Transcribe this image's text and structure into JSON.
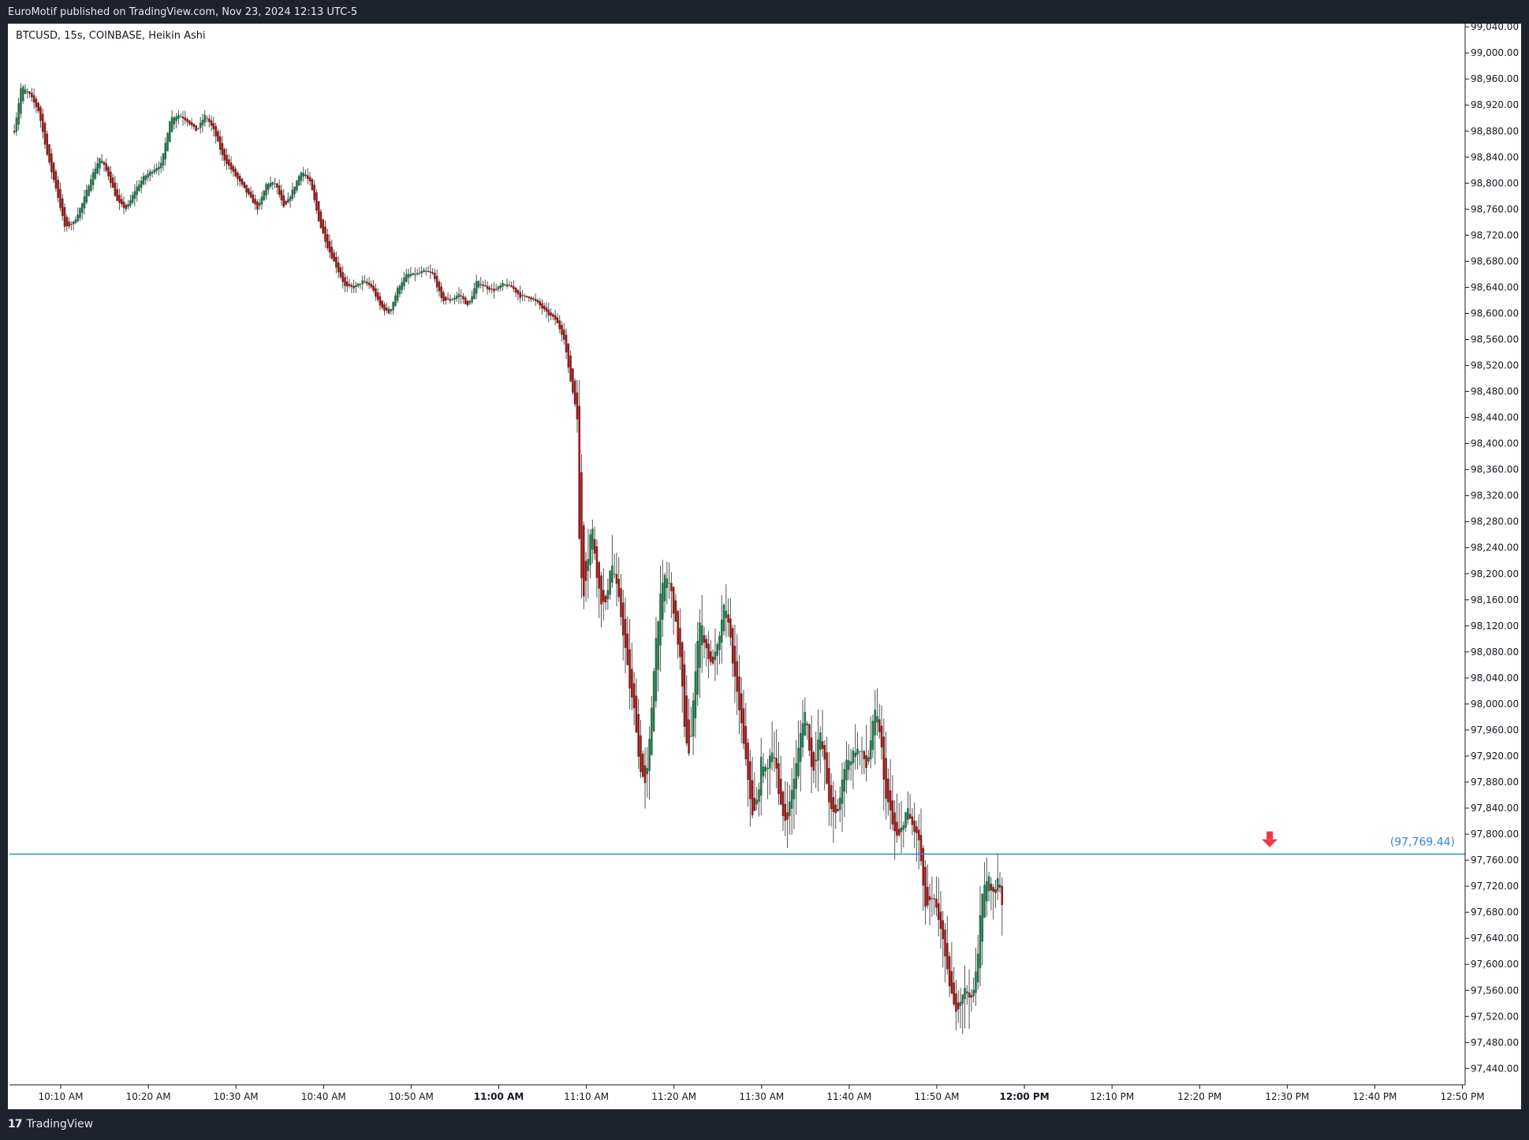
{
  "header": {
    "published": "EuroMotif published on TradingView.com, Nov 23, 2024 12:13 UTC-5"
  },
  "chart_info": {
    "symbol_line": "BTCUSD, 15s, COINBASE, Heikin Ashi"
  },
  "footer": {
    "brand": "TradingView"
  },
  "colors": {
    "bull": "#26734d",
    "bear": "#8c1f1f",
    "wick": "#555555",
    "level_line": "#2e86de",
    "arrow": "#f23645"
  },
  "chart_data": {
    "type": "candlestick",
    "title": "BTCUSD, 15s, COINBASE, Heikin Ashi",
    "y_ticks": [
      "99,040.00",
      "99,000.00",
      "98,960.00",
      "98,920.00",
      "98,880.00",
      "98,840.00",
      "98,800.00",
      "98,760.00",
      "98,720.00",
      "98,680.00",
      "98,640.00",
      "98,600.00",
      "98,560.00",
      "98,520.00",
      "98,480.00",
      "98,440.00",
      "98,400.00",
      "98,360.00",
      "98,320.00",
      "98,280.00",
      "98,240.00",
      "98,200.00",
      "98,160.00",
      "98,120.00",
      "98,080.00",
      "98,040.00",
      "98,000.00",
      "97,960.00",
      "97,920.00",
      "97,880.00",
      "97,840.00",
      "97,800.00",
      "97,760.00",
      "97,720.00",
      "97,680.00",
      "97,640.00",
      "97,600.00",
      "97,560.00",
      "97,520.00",
      "97,480.00",
      "97,440.00"
    ],
    "y_tick_values": [
      99040,
      99000,
      98960,
      98920,
      98880,
      98840,
      98800,
      98760,
      98720,
      98680,
      98640,
      98600,
      98560,
      98520,
      98480,
      98440,
      98400,
      98360,
      98320,
      98280,
      98240,
      98200,
      98160,
      98120,
      98080,
      98040,
      98000,
      97960,
      97920,
      97880,
      97840,
      97800,
      97760,
      97720,
      97680,
      97640,
      97600,
      97560,
      97520,
      97480,
      97440
    ],
    "ylim": [
      97415,
      99045
    ],
    "x_ticks": [
      {
        "label": "10:10 AM",
        "minutes": 610,
        "bold": false
      },
      {
        "label": "10:20 AM",
        "minutes": 620,
        "bold": false
      },
      {
        "label": "10:30 AM",
        "minutes": 630,
        "bold": false
      },
      {
        "label": "10:40 AM",
        "minutes": 640,
        "bold": false
      },
      {
        "label": "10:50 AM",
        "minutes": 650,
        "bold": false
      },
      {
        "label": "11:00 AM",
        "minutes": 660,
        "bold": true
      },
      {
        "label": "11:10 AM",
        "minutes": 670,
        "bold": false
      },
      {
        "label": "11:20 AM",
        "minutes": 680,
        "bold": false
      },
      {
        "label": "11:30 AM",
        "minutes": 690,
        "bold": false
      },
      {
        "label": "11:40 AM",
        "minutes": 700,
        "bold": false
      },
      {
        "label": "11:50 AM",
        "minutes": 710,
        "bold": false
      },
      {
        "label": "12:00 PM",
        "minutes": 720,
        "bold": true
      },
      {
        "label": "12:10 PM",
        "minutes": 730,
        "bold": false
      },
      {
        "label": "12:20 PM",
        "minutes": 740,
        "bold": false
      },
      {
        "label": "12:30 PM",
        "minutes": 750,
        "bold": false
      },
      {
        "label": "12:40 PM",
        "minutes": 760,
        "bold": false
      },
      {
        "label": "12:50 PM",
        "minutes": 770,
        "bold": false
      }
    ],
    "price_path": [
      [
        604.7,
        98880
      ],
      [
        605.5,
        98950
      ],
      [
        606.5,
        98935
      ],
      [
        607.5,
        98910
      ],
      [
        608.5,
        98840
      ],
      [
        609.5,
        98790
      ],
      [
        610.5,
        98730
      ],
      [
        611.5,
        98740
      ],
      [
        612.5,
        98770
      ],
      [
        613.5,
        98810
      ],
      [
        614.5,
        98840
      ],
      [
        615.5,
        98810
      ],
      [
        616.5,
        98770
      ],
      [
        617.5,
        98760
      ],
      [
        618.5,
        98790
      ],
      [
        619.5,
        98810
      ],
      [
        620.5,
        98820
      ],
      [
        621.5,
        98830
      ],
      [
        622.5,
        98900
      ],
      [
        623.5,
        98905
      ],
      [
        624.5,
        98895
      ],
      [
        625.5,
        98880
      ],
      [
        626.5,
        98905
      ],
      [
        627.5,
        98880
      ],
      [
        628.5,
        98840
      ],
      [
        629.5,
        98820
      ],
      [
        630.5,
        98800
      ],
      [
        631.5,
        98780
      ],
      [
        632.5,
        98760
      ],
      [
        633.5,
        98800
      ],
      [
        634.5,
        98800
      ],
      [
        635.5,
        98760
      ],
      [
        636.5,
        98790
      ],
      [
        637.5,
        98820
      ],
      [
        638.5,
        98800
      ],
      [
        639.5,
        98740
      ],
      [
        640.5,
        98700
      ],
      [
        641.5,
        98670
      ],
      [
        642.5,
        98640
      ],
      [
        643.5,
        98640
      ],
      [
        644.5,
        98650
      ],
      [
        645.5,
        98640
      ],
      [
        646.5,
        98610
      ],
      [
        647.5,
        98600
      ],
      [
        648.5,
        98640
      ],
      [
        649.5,
        98660
      ],
      [
        650.5,
        98660
      ],
      [
        651.5,
        98665
      ],
      [
        652.5,
        98660
      ],
      [
        653.5,
        98620
      ],
      [
        654.5,
        98620
      ],
      [
        655.5,
        98630
      ],
      [
        656.5,
        98610
      ],
      [
        657.5,
        98650
      ],
      [
        658.5,
        98640
      ],
      [
        659.5,
        98635
      ],
      [
        660.5,
        98645
      ],
      [
        661.5,
        98640
      ],
      [
        662.5,
        98625
      ],
      [
        663.5,
        98625
      ],
      [
        664.5,
        98615
      ],
      [
        665.5,
        98600
      ],
      [
        666.5,
        98590
      ],
      [
        667.5,
        98560
      ],
      [
        668.0,
        98510
      ],
      [
        669.0,
        98440
      ],
      [
        669.2,
        98250
      ],
      [
        669.6,
        98160
      ],
      [
        670.0,
        98200
      ],
      [
        670.6,
        98280
      ],
      [
        671.2,
        98200
      ],
      [
        671.6,
        98160
      ],
      [
        672.2,
        98150
      ],
      [
        672.8,
        98220
      ],
      [
        673.2,
        98200
      ],
      [
        673.8,
        98150
      ],
      [
        674.4,
        98090
      ],
      [
        675.0,
        98020
      ],
      [
        675.6,
        97980
      ],
      [
        676.0,
        97910
      ],
      [
        676.8,
        97870
      ],
      [
        677.3,
        97960
      ],
      [
        677.8,
        98080
      ],
      [
        678.4,
        98160
      ],
      [
        679.0,
        98200
      ],
      [
        679.6,
        98180
      ],
      [
        680.2,
        98120
      ],
      [
        680.8,
        98060
      ],
      [
        681.2,
        97960
      ],
      [
        681.8,
        97920
      ],
      [
        682.2,
        98000
      ],
      [
        682.6,
        98090
      ],
      [
        683.0,
        98130
      ],
      [
        683.6,
        98090
      ],
      [
        684.2,
        98060
      ],
      [
        684.6,
        98070
      ],
      [
        685.2,
        98100
      ],
      [
        685.6,
        98150
      ],
      [
        686.2,
        98130
      ],
      [
        686.6,
        98080
      ],
      [
        687.0,
        98030
      ],
      [
        687.6,
        97980
      ],
      [
        688.0,
        97930
      ],
      [
        688.6,
        97870
      ],
      [
        689.0,
        97820
      ],
      [
        689.6,
        97860
      ],
      [
        690.0,
        97920
      ],
      [
        690.6,
        97890
      ],
      [
        691.0,
        97930
      ],
      [
        691.6,
        97920
      ],
      [
        692.0,
        97850
      ],
      [
        692.6,
        97820
      ],
      [
        693.0,
        97830
      ],
      [
        693.6,
        97880
      ],
      [
        694.0,
        97910
      ],
      [
        694.6,
        97970
      ],
      [
        695.0,
        97990
      ],
      [
        695.4,
        97940
      ],
      [
        695.8,
        97890
      ],
      [
        696.2,
        97920
      ],
      [
        696.6,
        97960
      ],
      [
        697.2,
        97910
      ],
      [
        697.6,
        97860
      ],
      [
        698.0,
        97830
      ],
      [
        698.6,
        97830
      ],
      [
        699.0,
        97860
      ],
      [
        699.6,
        97920
      ],
      [
        700.0,
        97910
      ],
      [
        700.6,
        97930
      ],
      [
        701.0,
        97930
      ],
      [
        701.6,
        97920
      ],
      [
        702.0,
        97900
      ],
      [
        702.6,
        97960
      ],
      [
        703.0,
        97990
      ],
      [
        703.6,
        97950
      ],
      [
        704.0,
        97870
      ],
      [
        704.6,
        97840
      ],
      [
        705.0,
        97810
      ],
      [
        705.6,
        97790
      ],
      [
        706.0,
        97810
      ],
      [
        706.6,
        97840
      ],
      [
        707.0,
        97820
      ],
      [
        707.6,
        97800
      ],
      [
        708.0,
        97790
      ],
      [
        708.6,
        97690
      ],
      [
        709.0,
        97690
      ],
      [
        709.6,
        97700
      ],
      [
        710.0,
        97680
      ],
      [
        710.6,
        97650
      ],
      [
        711.0,
        97600
      ],
      [
        711.6,
        97560
      ],
      [
        712.0,
        97530
      ],
      [
        712.6,
        97540
      ],
      [
        713.0,
        97560
      ],
      [
        713.6,
        97560
      ],
      [
        714.0,
        97540
      ],
      [
        714.6,
        97600
      ],
      [
        715.0,
        97690
      ],
      [
        715.6,
        97730
      ],
      [
        716.0,
        97730
      ],
      [
        716.6,
        97700
      ],
      [
        717.0,
        97740
      ],
      [
        717.6,
        97680
      ]
    ],
    "level": {
      "price": 97769.44,
      "label": "(97,769.44)"
    },
    "sell_arrow": {
      "minutes": 748,
      "price": 97780,
      "direction": "down"
    }
  }
}
